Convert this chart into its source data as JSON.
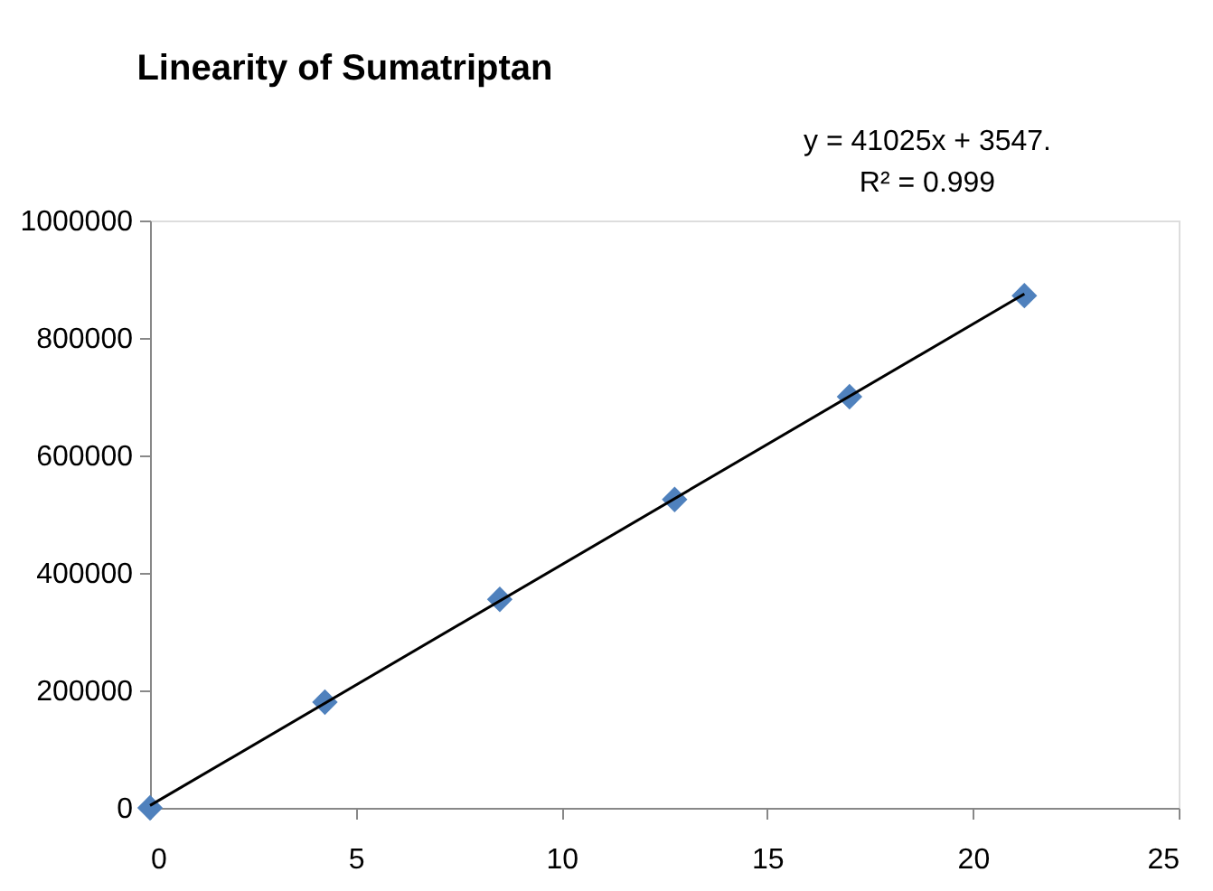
{
  "chart_data": {
    "type": "scatter",
    "title": "Linearity of Sumatriptan",
    "annotations": [
      "y = 41025x + 3547.",
      "R² = 0.999"
    ],
    "series": [
      {
        "color": "#4f81bd",
        "marker": "diamond",
        "x": [
          0,
          4.25,
          8.5,
          12.75,
          17,
          21.25
        ],
        "values": [
          0,
          180000,
          355000,
          525000,
          700000,
          872000
        ]
      },
      {
        "type": "line",
        "color": "#000000",
        "line_style": "solid",
        "x": [
          0,
          21.25
        ],
        "values": [
          4000,
          875000
        ]
      }
    ],
    "xlim": [
      0,
      25
    ],
    "xticks": [
      0,
      5,
      10,
      15,
      20,
      25
    ],
    "ylim": [
      0,
      1000000
    ],
    "yticks": [
      0,
      200000,
      400000,
      600000,
      800000,
      1000000
    ],
    "grid": false
  }
}
